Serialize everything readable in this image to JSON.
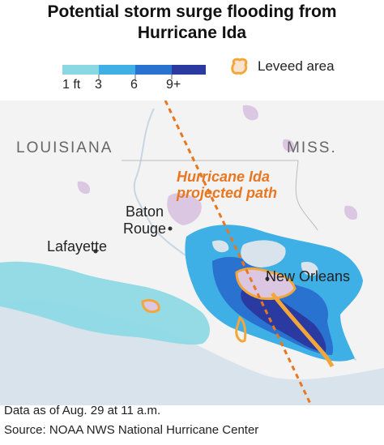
{
  "title_lines": [
    "Potential storm surge flooding from",
    "Hurricane Ida"
  ],
  "legend": {
    "swatch_colors": [
      "#8ad8e4",
      "#3fb0e6",
      "#2a72cf",
      "#2a3aa0"
    ],
    "depth_labels": [
      "1 ft",
      "3",
      "6",
      "9+"
    ],
    "leveed_label": "Leveed area",
    "leveed_color": "#f3a73b"
  },
  "map": {
    "state_labels": [
      "LOUISIANA",
      "MISS."
    ],
    "city_labels": {
      "baton_rouge": [
        "Baton",
        "Rouge"
      ],
      "lafayette": "Lafayette",
      "new_orleans": "New Orleans"
    },
    "hurricane_path_label": [
      "Hurricane Ida",
      "projected path"
    ],
    "path_color": "#e87722",
    "urban_color": "#dcc7e3",
    "land_color": "#f3f3f3",
    "water_color": "#d9e3ec"
  },
  "footer": {
    "date_note": "Data as of Aug. 29 at 11 a.m.",
    "source_note": "Source: NOAA NWS National Hurricane Center"
  }
}
